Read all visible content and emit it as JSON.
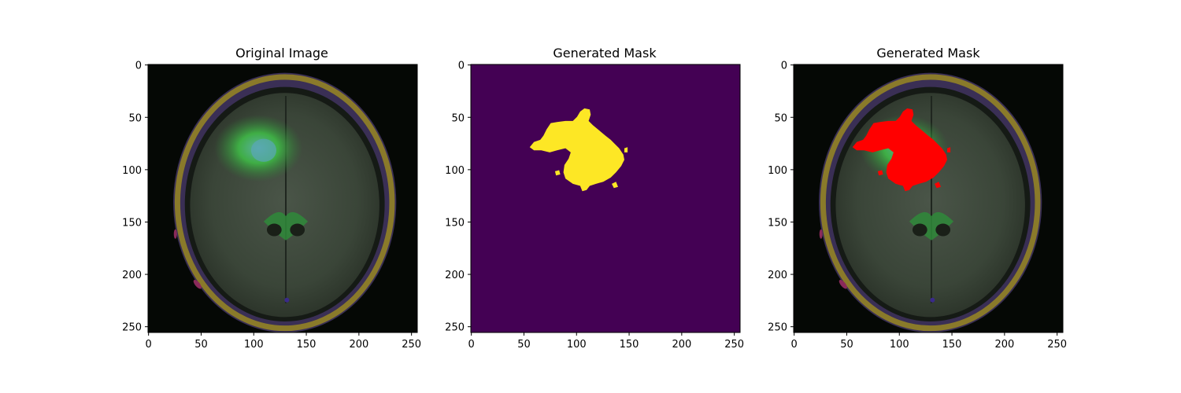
{
  "panels": [
    {
      "title": "Original Image",
      "kind": "mri",
      "xticks": [
        "0",
        "50",
        "100",
        "150",
        "200",
        "250"
      ],
      "yticks": [
        "0",
        "50",
        "100",
        "150",
        "200",
        "250"
      ]
    },
    {
      "title": "Generated Mask",
      "kind": "mask",
      "xticks": [
        "0",
        "50",
        "100",
        "150",
        "200",
        "250"
      ],
      "yticks": [
        "0",
        "50",
        "100",
        "150",
        "200",
        "250"
      ]
    },
    {
      "title": "Generated Mask",
      "kind": "overlay",
      "xticks": [
        "0",
        "50",
        "100",
        "150",
        "200",
        "250"
      ],
      "yticks": [
        "0",
        "50",
        "100",
        "150",
        "200",
        "250"
      ]
    }
  ],
  "tick_values": [
    0,
    50,
    100,
    150,
    200,
    250
  ],
  "image_size": 256,
  "colors": {
    "mask_background": "#440154",
    "mask_foreground": "#fde725",
    "overlay_mask": "#ff0000",
    "scan_background": "#050805",
    "skull_ring": "#8a7a2a",
    "brain_tissue": "#3c4a3c",
    "edema": "#3fa83f"
  }
}
